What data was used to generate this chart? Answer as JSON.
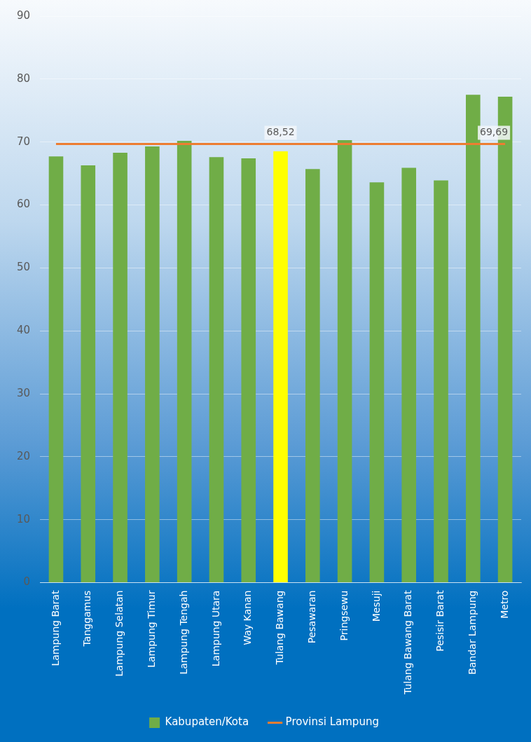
{
  "chart_data": {
    "type": "bar",
    "categories": [
      "Lampung Barat",
      "Tanggamus",
      "Lampung Selatan",
      "Lampung Timur",
      "Lampung Tengah",
      "Lampung Utara",
      "Way Kanan",
      "Tulang Bawang",
      "Pesawaran",
      "Pringsewu",
      "Mesuji",
      "Tulang Bawang Barat",
      "Pesisir Barat",
      "Bandar Lampung",
      "Metro"
    ],
    "series": [
      {
        "name": "Kabupaten/Kota",
        "color": "#70ad47",
        "colors": [
          "#70ad47",
          "#70ad47",
          "#70ad47",
          "#70ad47",
          "#70ad47",
          "#70ad47",
          "#70ad47",
          "#ffff00",
          "#70ad47",
          "#70ad47",
          "#70ad47",
          "#70ad47",
          "#70ad47",
          "#70ad47",
          "#70ad47"
        ],
        "values": [
          67.7,
          66.3,
          68.3,
          69.3,
          70.2,
          67.6,
          67.4,
          68.52,
          65.7,
          70.3,
          63.6,
          65.9,
          63.9,
          77.5,
          77.2
        ],
        "value_labels": [
          null,
          null,
          null,
          null,
          null,
          null,
          null,
          "68,52",
          null,
          null,
          null,
          null,
          null,
          null,
          null
        ]
      },
      {
        "name": "Provinsi Lampung",
        "type": "line",
        "color": "#ed7d31",
        "marker": "none",
        "values": [
          69.69,
          69.69,
          69.69,
          69.69,
          69.69,
          69.69,
          69.69,
          69.69,
          69.69,
          69.69,
          69.69,
          69.69,
          69.69,
          69.69,
          69.69
        ],
        "value_labels": [
          null,
          null,
          null,
          null,
          null,
          null,
          null,
          null,
          null,
          null,
          null,
          null,
          null,
          null,
          "69,69"
        ]
      }
    ],
    "ylim": [
      0,
      90
    ],
    "yticks": [
      0,
      10,
      20,
      30,
      40,
      50,
      60,
      70,
      80,
      90
    ],
    "grid": "y",
    "legend": "bottom"
  }
}
